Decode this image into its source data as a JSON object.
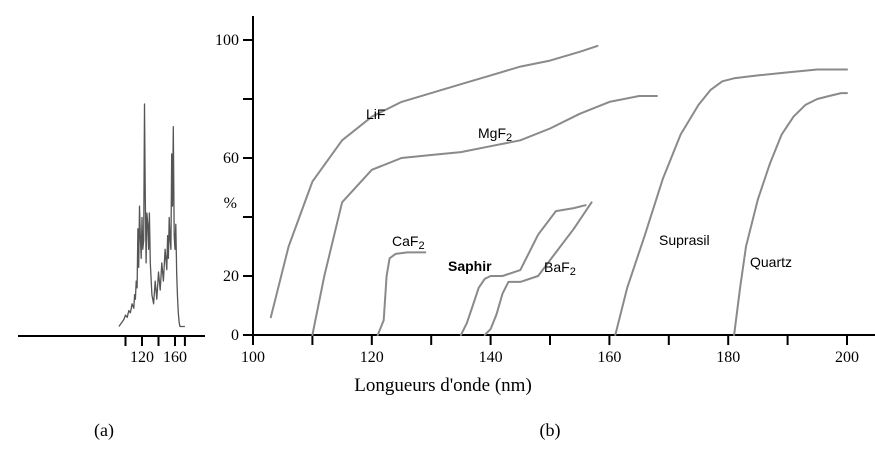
{
  "chart_data": [
    {
      "panel": "(a)",
      "type": "line",
      "xticks": [
        120,
        160
      ],
      "x": [
        92,
        96,
        98,
        100,
        102,
        104,
        106,
        108,
        110,
        111,
        112,
        113,
        114,
        115,
        116,
        117,
        118,
        119,
        120,
        121,
        122,
        123,
        124,
        125,
        126,
        127,
        128,
        129,
        130,
        132,
        134,
        136,
        138,
        140,
        142,
        144,
        146,
        148,
        150,
        151,
        152,
        153,
        154,
        155,
        156,
        157,
        158,
        159,
        160,
        161,
        162,
        163,
        164,
        165,
        166,
        168,
        170,
        172
      ],
      "y": [
        0.02,
        0.04,
        0.05,
        0.07,
        0.06,
        0.09,
        0.08,
        0.12,
        0.1,
        0.16,
        0.14,
        0.22,
        0.19,
        0.45,
        0.28,
        0.55,
        0.42,
        0.32,
        0.5,
        0.36,
        0.4,
        1.0,
        0.58,
        0.3,
        0.52,
        0.47,
        0.36,
        0.52,
        0.3,
        0.16,
        0.12,
        0.22,
        0.14,
        0.26,
        0.18,
        0.3,
        0.22,
        0.36,
        0.27,
        0.42,
        0.32,
        0.5,
        0.4,
        0.36,
        0.78,
        0.55,
        0.9,
        0.42,
        0.36,
        0.47,
        0.25,
        0.15,
        0.08,
        0.04,
        0.02,
        0.02,
        0.02,
        0.02
      ]
    },
    {
      "panel": "(b)",
      "type": "line",
      "xlabel": "Longueurs d'onde (nm)",
      "ylabel": "%",
      "xlim": [
        100,
        200
      ],
      "ylim": [
        0,
        100
      ],
      "xticks": [
        100,
        120,
        140,
        160,
        180,
        200
      ],
      "yticks": [
        0,
        20,
        60,
        100
      ],
      "series": [
        {
          "name": "LiF",
          "x": [
            103,
            106,
            110,
            115,
            120,
            125,
            130,
            135,
            140,
            145,
            150,
            155,
            158
          ],
          "y": [
            6,
            30,
            52,
            66,
            74,
            79,
            82,
            85,
            88,
            91,
            93,
            96,
            98
          ]
        },
        {
          "name": "MgF2",
          "x": [
            110,
            112,
            115,
            120,
            125,
            130,
            135,
            140,
            145,
            150,
            155,
            160,
            165,
            168
          ],
          "y": [
            0,
            20,
            45,
            56,
            60,
            61,
            62,
            64,
            66,
            70,
            75,
            79,
            81,
            81
          ]
        },
        {
          "name": "CaF2",
          "x": [
            121,
            122,
            122.5,
            123,
            124,
            126,
            129
          ],
          "y": [
            0,
            5,
            20,
            26,
            27.5,
            28,
            28
          ]
        },
        {
          "name": "Saphir",
          "x": [
            135,
            136,
            137,
            138,
            139,
            140,
            142,
            145,
            148,
            151,
            154,
            156
          ],
          "y": [
            0,
            4,
            10,
            16,
            19,
            20,
            20,
            22,
            34,
            42,
            43,
            44
          ]
        },
        {
          "name": "BaF2",
          "x": [
            139,
            140,
            141,
            142,
            143,
            145,
            148,
            151,
            154,
            157
          ],
          "y": [
            0,
            2,
            7,
            14,
            18,
            18,
            20,
            28,
            36,
            45
          ]
        },
        {
          "name": "Suprasil",
          "x": [
            161,
            163,
            166,
            169,
            172,
            175,
            177,
            179,
            181,
            185,
            190,
            195,
            200
          ],
          "y": [
            0,
            16,
            34,
            53,
            68,
            78,
            83,
            86,
            87,
            88,
            89,
            90,
            90
          ]
        },
        {
          "name": "Quartz",
          "x": [
            181,
            182,
            183,
            185,
            187,
            189,
            191,
            193,
            195,
            197,
            199,
            200
          ],
          "y": [
            0,
            16,
            30,
            46,
            58,
            68,
            74,
            78,
            80,
            81,
            82,
            82
          ]
        }
      ]
    }
  ],
  "labels": {
    "panel_a": "(a)",
    "panel_b": "(b)",
    "lif": "LiF",
    "mgf2_base": "MgF",
    "caf2_base": "CaF",
    "baf2_base": "BaF",
    "subscript_2": "2",
    "saphir": "Saphir",
    "suprasil": "Suprasil",
    "quartz": "Quartz"
  }
}
